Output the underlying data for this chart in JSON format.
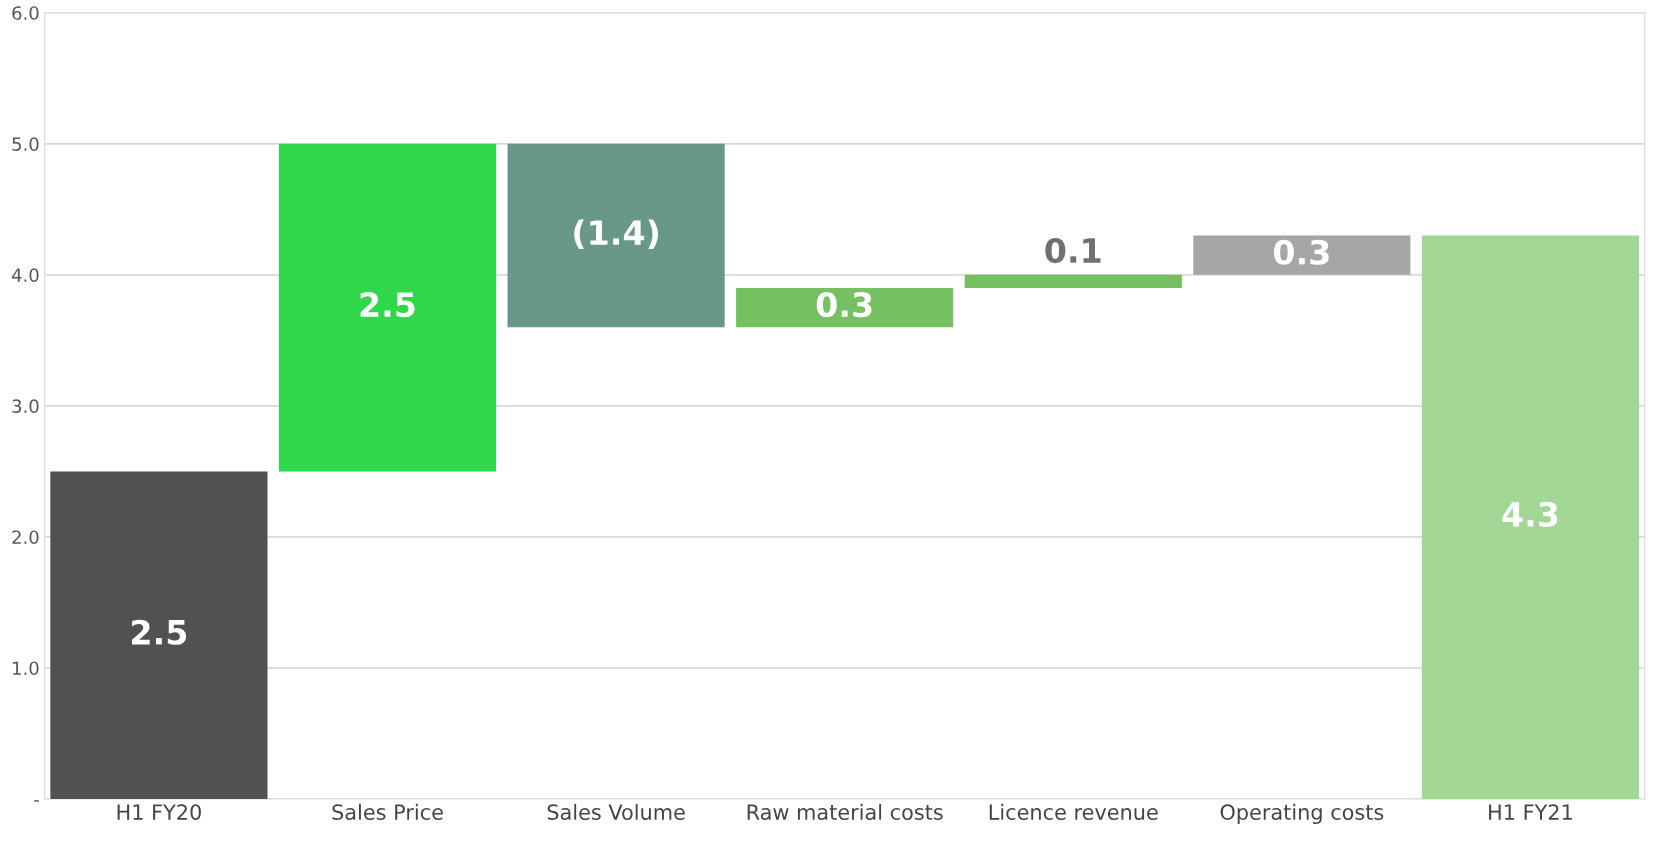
{
  "chart_data": {
    "type": "bar",
    "categories": [
      "H1 FY20",
      "Sales Price",
      "Sales Volume",
      "Raw material costs",
      "Licence revenue",
      "Operating costs",
      "H1 FY21"
    ],
    "values": [
      2.5,
      2.5,
      -1.4,
      0.3,
      0.1,
      0.3,
      4.3
    ],
    "base": [
      0,
      2.5,
      5.0,
      3.6,
      3.9,
      4.0,
      0
    ],
    "colors": [
      "#505153",
      "#2fd84a",
      "#6a9888",
      "#75c060",
      "#75c060",
      "#a6a6a6",
      "#a3d796"
    ],
    "value_labels": [
      "2.5",
      "2.5",
      "(1.4)",
      "0.3",
      "0.1",
      "0.3",
      "4.3"
    ],
    "ylim": [
      0,
      6.0
    ],
    "yticks": [
      {
        "value": 0,
        "label": "-"
      },
      {
        "value": 1.0,
        "label": "1.0"
      },
      {
        "value": 2.0,
        "label": "2.0"
      },
      {
        "value": 3.0,
        "label": "3.0"
      },
      {
        "value": 4.0,
        "label": "4.0"
      },
      {
        "value": 5.0,
        "label": "5.0"
      },
      {
        "value": 6.0,
        "label": "6.0"
      }
    ],
    "grid": "y"
  }
}
